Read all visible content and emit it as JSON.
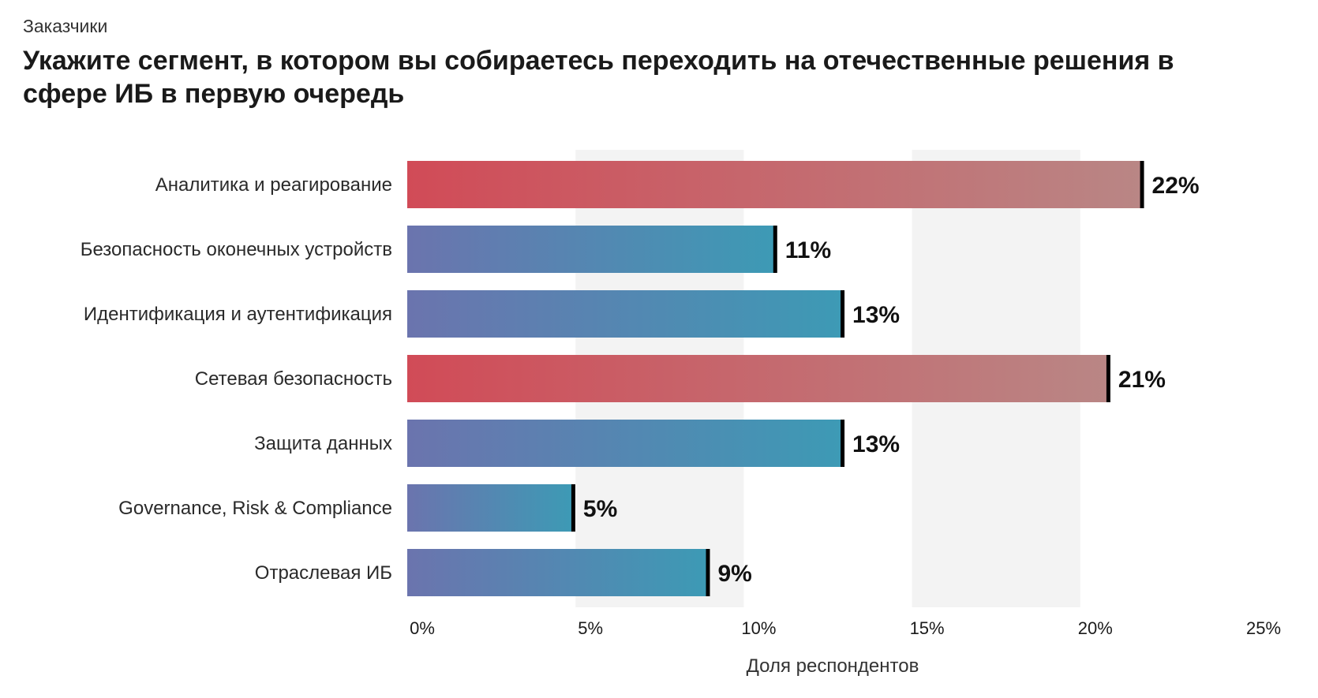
{
  "header": {
    "subtitle": "Заказчики",
    "title": "Укажите сегмент, в котором вы собираетесь переходить на отечественные решения в сфере ИБ в первую очередь"
  },
  "colors": {
    "red_start": "#d14b57",
    "red_end": "#b98685",
    "blue_start": "#6b74ae",
    "blue_end": "#3d9ab5",
    "band": "#f3f3f3",
    "cap": "#000000"
  },
  "chart_data": {
    "type": "bar",
    "orientation": "horizontal",
    "title": "Укажите сегмент, в котором вы собираетесь переходить на отечественные решения в сфере ИБ в первую очередь",
    "xlabel": "Доля респондентов",
    "ylabel": "",
    "xlim": [
      0,
      25
    ],
    "xticks": [
      "0%",
      "5%",
      "10%",
      "15%",
      "20%",
      "25%"
    ],
    "categories": [
      "Аналитика и реагирование",
      "Безопасность оконечных устройств",
      "Идентификация и аутентификация",
      "Сетевая безопасность",
      "Защита данных",
      "Governance, Risk & Compliance",
      "Отраслевая ИБ"
    ],
    "values": [
      21.8,
      10.9,
      12.9,
      20.8,
      12.9,
      4.9,
      8.9
    ],
    "value_labels": [
      "22%",
      "11%",
      "13%",
      "21%",
      "13%",
      "5%",
      "9%"
    ],
    "highlight": [
      true,
      false,
      false,
      true,
      false,
      false,
      false
    ]
  }
}
